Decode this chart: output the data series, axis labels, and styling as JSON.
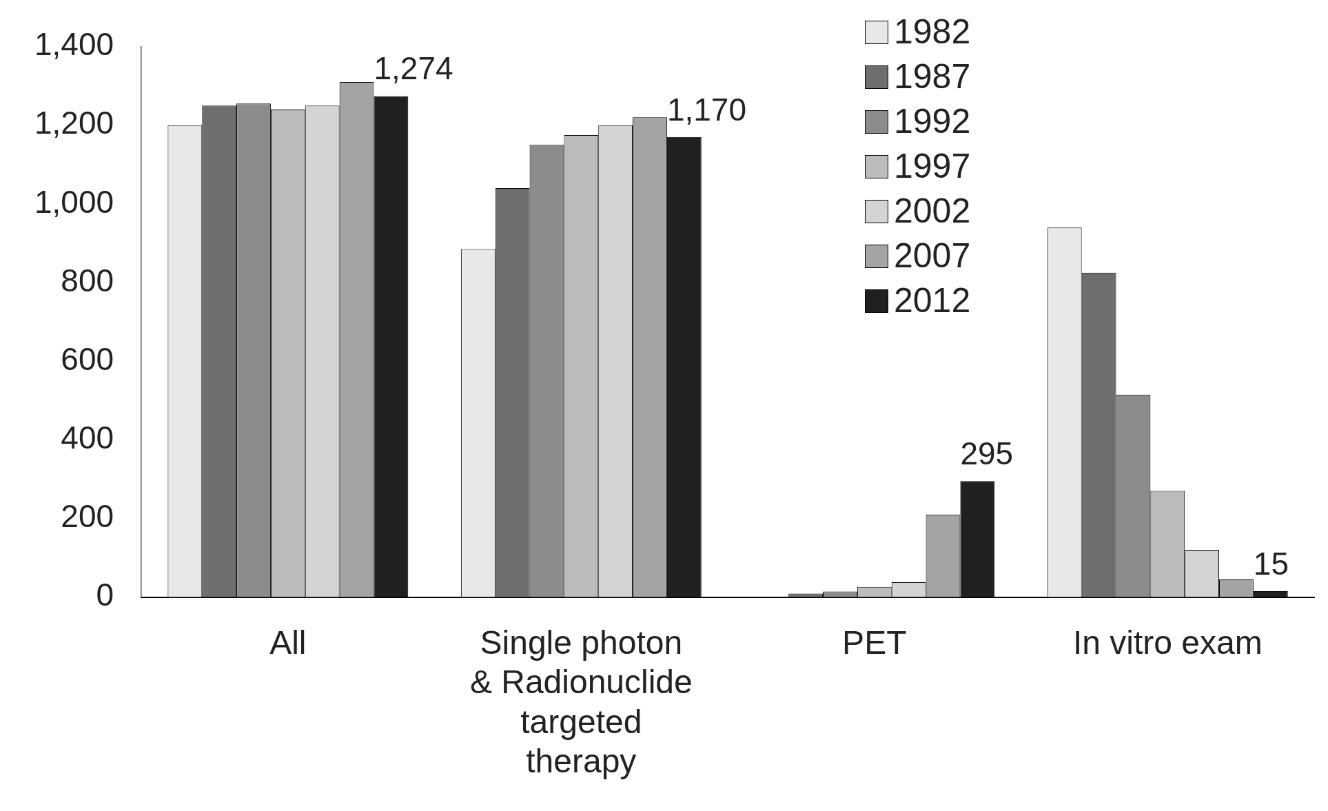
{
  "chart_data": {
    "type": "bar",
    "categories": [
      "All",
      "Single photon & Radionuclide targeted therapy",
      "PET",
      "In vitro exam"
    ],
    "series": [
      {
        "name": "1982",
        "color": "#e8e8e8",
        "values": [
          1200,
          885,
          null,
          940
        ]
      },
      {
        "name": "1987",
        "color": "#6e6e6e",
        "values": [
          1250,
          1040,
          9,
          825
        ]
      },
      {
        "name": "1992",
        "color": "#8c8c8c",
        "values": [
          1255,
          1150,
          14,
          515
        ]
      },
      {
        "name": "1997",
        "color": "#bcbcbc",
        "values": [
          1240,
          1175,
          26,
          270
        ]
      },
      {
        "name": "2002",
        "color": "#d4d4d4",
        "values": [
          1250,
          1200,
          38,
          120
        ]
      },
      {
        "name": "2007",
        "color": "#a4a4a4",
        "values": [
          1310,
          1220,
          210,
          45
        ]
      },
      {
        "name": "2012",
        "color": "#202020",
        "values": [
          1274,
          1170,
          295,
          15
        ],
        "value_labels": [
          "1,274",
          "1,170",
          "295",
          "15"
        ]
      }
    ],
    "ylim": [
      0,
      1400
    ],
    "yticks": [
      0,
      200,
      400,
      600,
      800,
      {
        "value": 1000,
        "label": "1,000"
      },
      {
        "value": 1200,
        "label": "1,200"
      },
      {
        "value": 1400,
        "label": "1,400"
      }
    ],
    "grid": false,
    "legend": "top right"
  }
}
